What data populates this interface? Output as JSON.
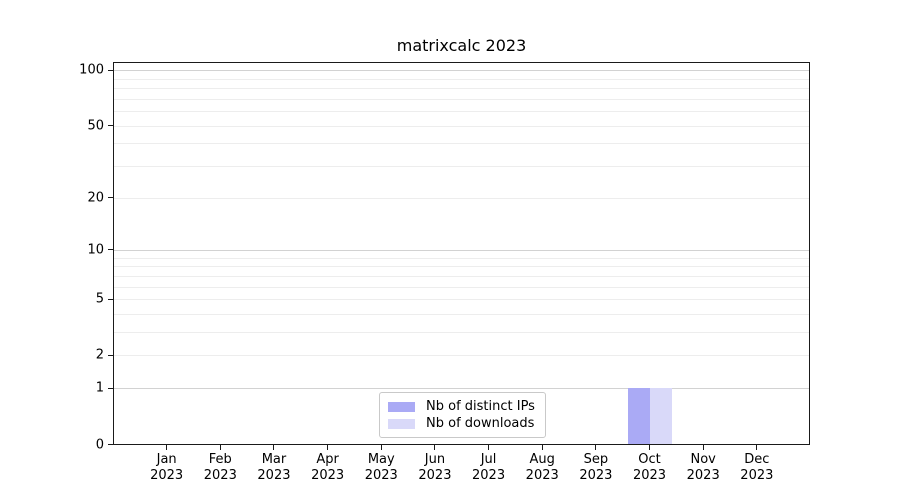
{
  "chart_data": {
    "type": "bar",
    "title": "matrixcalc 2023",
    "year": "2023",
    "categories": [
      "Jan",
      "Feb",
      "Mar",
      "Apr",
      "May",
      "Jun",
      "Jul",
      "Aug",
      "Sep",
      "Oct",
      "Nov",
      "Dec"
    ],
    "series": [
      {
        "name": "Nb of distinct IPs",
        "color": "#aaaaf5",
        "values": [
          0,
          0,
          0,
          0,
          0,
          0,
          0,
          0,
          0,
          1,
          0,
          0
        ]
      },
      {
        "name": "Nb of downloads",
        "color": "#d9d9f9",
        "values": [
          0,
          0,
          0,
          0,
          0,
          0,
          0,
          0,
          0,
          1,
          0,
          0
        ]
      }
    ],
    "xlabel": "",
    "ylabel": "",
    "yscale": "log(1+x)",
    "ylim": [
      0,
      110
    ],
    "yticks": [
      0,
      1,
      2,
      5,
      10,
      20,
      50,
      100
    ],
    "grid": {
      "major_values": [
        1,
        10,
        100
      ],
      "minor_values": [
        2,
        3,
        4,
        5,
        6,
        7,
        8,
        9,
        20,
        30,
        40,
        50,
        60,
        70,
        80,
        90
      ],
      "major_color": "#d2d2d2",
      "minor_color": "#ededed"
    },
    "legend": {
      "position": "lower center",
      "entries": [
        "Nb of distinct IPs",
        "Nb of downloads"
      ]
    },
    "colors": {
      "axis": "#1a1a1a",
      "background": "#ffffff",
      "text": "#000000"
    }
  }
}
